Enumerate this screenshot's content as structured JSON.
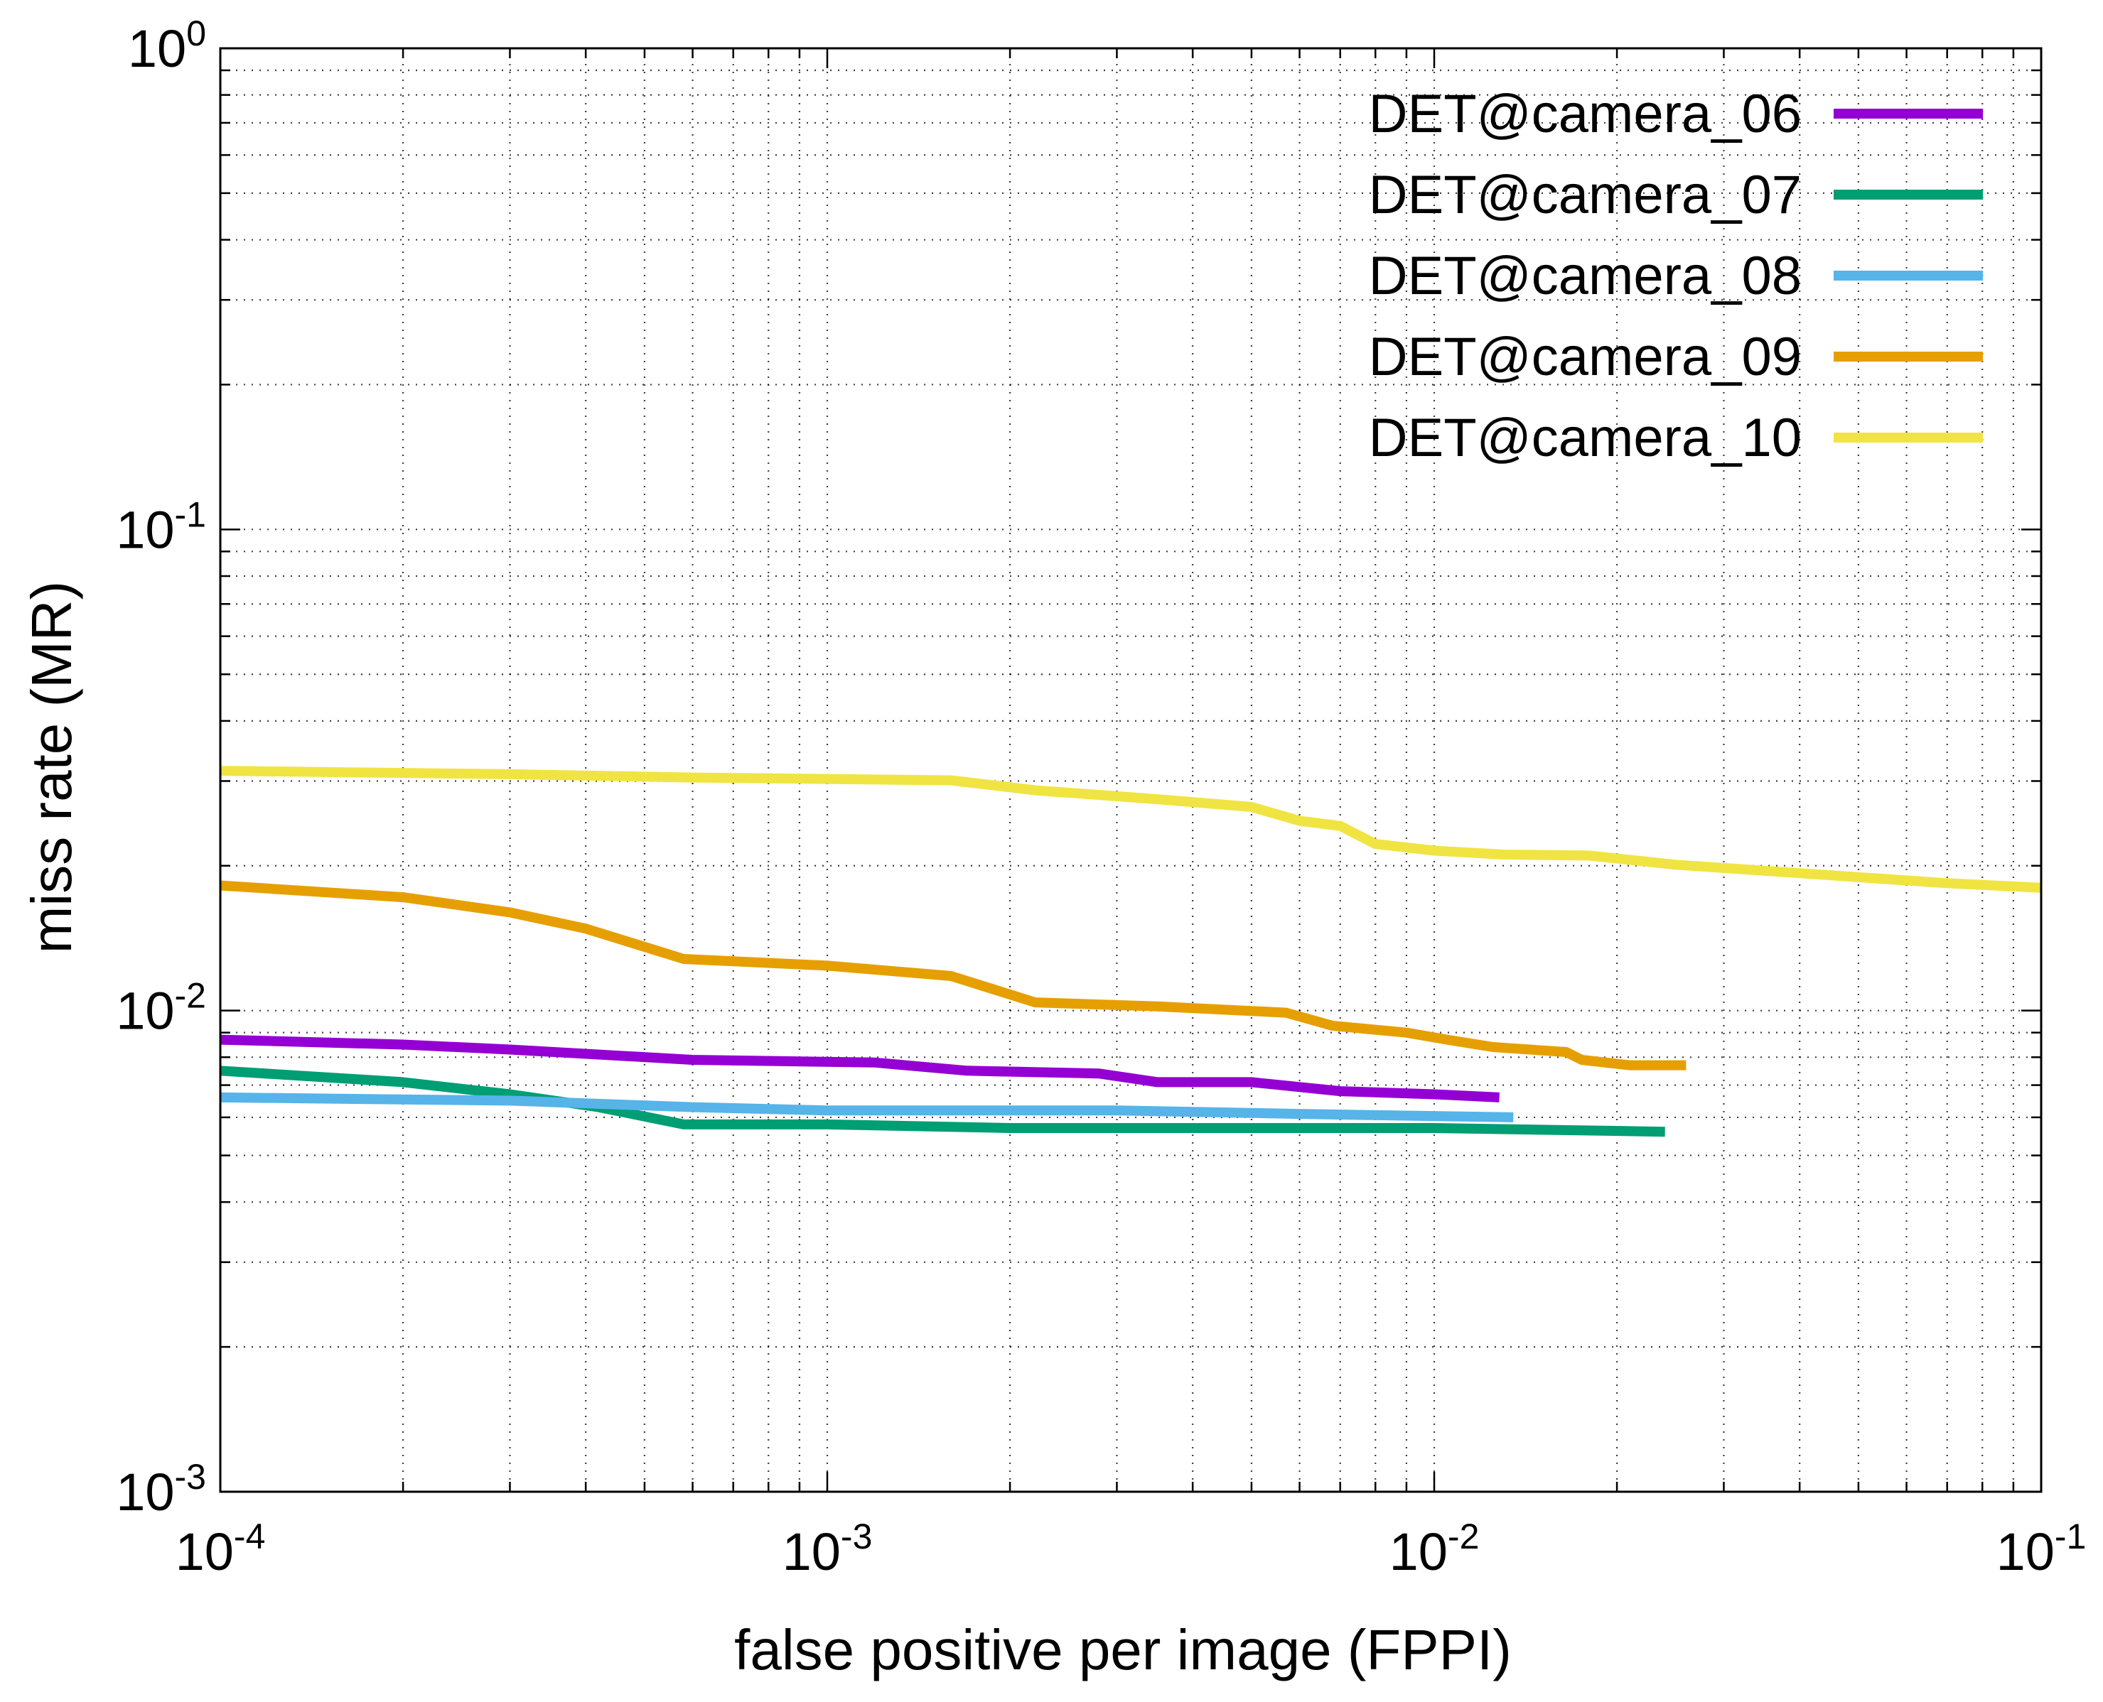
{
  "chart_data": {
    "type": "line",
    "xlabel": "false positive per image (FPPI)",
    "ylabel": "miss rate (MR)",
    "xscale": "log",
    "yscale": "log",
    "xlim": [
      0.0001,
      0.1
    ],
    "ylim": [
      0.001,
      1
    ],
    "x_ticks": [
      {
        "base": "10",
        "exp": "-4",
        "value": 0.0001
      },
      {
        "base": "10",
        "exp": "-3",
        "value": 0.001
      },
      {
        "base": "10",
        "exp": "-2",
        "value": 0.01
      },
      {
        "base": "10",
        "exp": "-1",
        "value": 0.1
      }
    ],
    "y_ticks": [
      {
        "base": "10",
        "exp": "-3",
        "value": 0.001
      },
      {
        "base": "10",
        "exp": "-2",
        "value": 0.01
      },
      {
        "base": "10",
        "exp": "-1",
        "value": 0.1
      },
      {
        "base": "10",
        "exp": "0",
        "value": 1
      }
    ],
    "grid": true,
    "legend_position": "top-right",
    "series": [
      {
        "name": "DET@camera_06",
        "color": "#9400d3",
        "points": [
          [
            0.0001,
            0.0087
          ],
          [
            0.0002,
            0.0085
          ],
          [
            0.0003,
            0.0083
          ],
          [
            0.0006,
            0.0079
          ],
          [
            0.0012,
            0.0078
          ],
          [
            0.0017,
            0.0075
          ],
          [
            0.0028,
            0.0074
          ],
          [
            0.0035,
            0.0071
          ],
          [
            0.005,
            0.0071
          ],
          [
            0.007,
            0.0068
          ],
          [
            0.01,
            0.0067
          ],
          [
            0.0128,
            0.0066
          ]
        ]
      },
      {
        "name": "DET@camera_07",
        "color": "#009e73",
        "points": [
          [
            0.0001,
            0.0075
          ],
          [
            0.0002,
            0.0071
          ],
          [
            0.0003,
            0.0067
          ],
          [
            0.00042,
            0.0063
          ],
          [
            0.00058,
            0.0058
          ],
          [
            0.001,
            0.0058
          ],
          [
            0.002,
            0.0057
          ],
          [
            0.005,
            0.0057
          ],
          [
            0.01,
            0.0057
          ],
          [
            0.024,
            0.0056
          ]
        ]
      },
      {
        "name": "DET@camera_08",
        "color": "#56b4e9",
        "points": [
          [
            0.0001,
            0.0066
          ],
          [
            0.0003,
            0.0065
          ],
          [
            0.0006,
            0.0063
          ],
          [
            0.001,
            0.0062
          ],
          [
            0.003,
            0.0062
          ],
          [
            0.006,
            0.0061
          ],
          [
            0.0135,
            0.006
          ]
        ]
      },
      {
        "name": "DET@camera_09",
        "color": "#e69f00",
        "points": [
          [
            0.0001,
            0.0182
          ],
          [
            0.0002,
            0.0172
          ],
          [
            0.0003,
            0.016
          ],
          [
            0.0004,
            0.0148
          ],
          [
            0.00058,
            0.0128
          ],
          [
            0.001,
            0.0124
          ],
          [
            0.0016,
            0.0118
          ],
          [
            0.0022,
            0.0104
          ],
          [
            0.0035,
            0.0102
          ],
          [
            0.0057,
            0.0099
          ],
          [
            0.0068,
            0.0093
          ],
          [
            0.009,
            0.009
          ],
          [
            0.0105,
            0.0087
          ],
          [
            0.0125,
            0.0084
          ],
          [
            0.0165,
            0.0082
          ],
          [
            0.0175,
            0.0079
          ],
          [
            0.021,
            0.0077
          ],
          [
            0.026,
            0.0077
          ]
        ]
      },
      {
        "name": "DET@camera_10",
        "color": "#f0e442",
        "points": [
          [
            0.0001,
            0.0315
          ],
          [
            0.0003,
            0.031
          ],
          [
            0.0006,
            0.0305
          ],
          [
            0.001,
            0.0303
          ],
          [
            0.0016,
            0.0301
          ],
          [
            0.0022,
            0.0287
          ],
          [
            0.0035,
            0.0275
          ],
          [
            0.005,
            0.0265
          ],
          [
            0.006,
            0.0248
          ],
          [
            0.007,
            0.0242
          ],
          [
            0.008,
            0.0222
          ],
          [
            0.01,
            0.0215
          ],
          [
            0.013,
            0.0211
          ],
          [
            0.018,
            0.021
          ],
          [
            0.025,
            0.0201
          ],
          [
            0.04,
            0.0193
          ],
          [
            0.07,
            0.0184
          ],
          [
            0.1,
            0.018
          ]
        ]
      }
    ]
  }
}
